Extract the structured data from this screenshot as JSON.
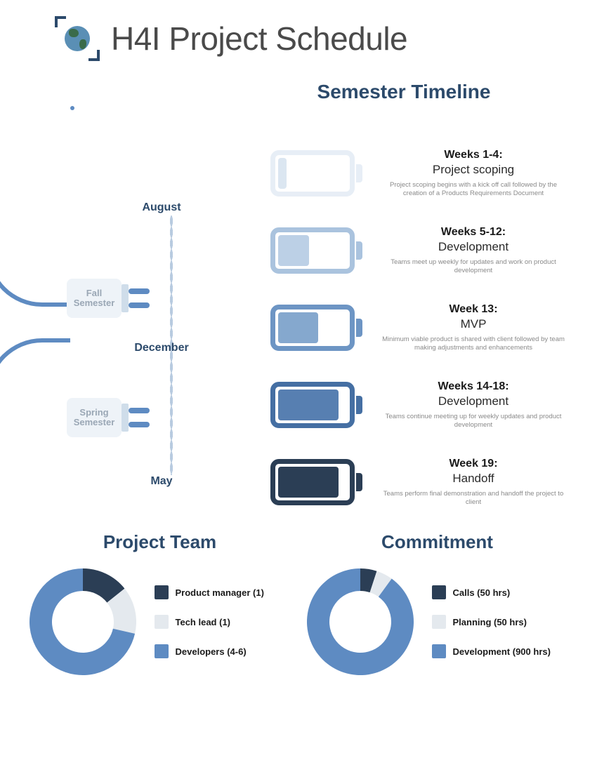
{
  "header": {
    "title": "H4I Project Schedule"
  },
  "timeline": {
    "subtitle": "Semester Timeline",
    "months": [
      "August",
      "December",
      "May"
    ],
    "plugs": {
      "fall_label": "Fall\nSemester",
      "spring_label": "Spring\nSemester"
    },
    "colors": {
      "accent_blue": "#5e8bc2",
      "dark_navy": "#2c4a6b",
      "pale": "#eef3f8",
      "midpale": "#cfddea"
    },
    "stages": [
      {
        "weeks": "Weeks 1-4:",
        "phase": "Project scoping",
        "desc": "Project scoping begins with a kick off call followed by the creation of a Products Requirements Document",
        "shell_color": "#e7eef6",
        "cap_color": "#e7eef6",
        "fill_color": "#dbe6f1",
        "fill_pct": 12
      },
      {
        "weeks": "Weeks 5-12:",
        "phase": "Development",
        "desc": "Teams meet up weekly for updates and work on product development",
        "shell_color": "#aac3de",
        "cap_color": "#aac3de",
        "fill_color": "#bcd0e6",
        "fill_pct": 45
      },
      {
        "weeks": "Week 13:",
        "phase": "MVP",
        "desc": "Minimum viable product is shared with client followed by team making adjustments and enhancements",
        "shell_color": "#6d95c4",
        "cap_color": "#6d95c4",
        "fill_color": "#85a8ce",
        "fill_pct": 58
      },
      {
        "weeks": "Weeks 14-18:",
        "phase": "Development",
        "desc": "Teams continue meeting up for weekly updates and product development",
        "shell_color": "#456fa3",
        "cap_color": "#456fa3",
        "fill_color": "#577fb1",
        "fill_pct": 88
      },
      {
        "weeks": "Week 19:",
        "phase": "Handoff",
        "desc": "Teams perform final demonstration and handoff the project to client",
        "shell_color": "#2b3e55",
        "cap_color": "#2b3e55",
        "fill_color": "#2b3e55",
        "fill_pct": 88
      }
    ]
  },
  "charts": {
    "team": {
      "title": "Project Team",
      "donut_thickness": 32,
      "bg": "#ffffff",
      "segments": [
        {
          "label": "Product manager (1)",
          "value": 1,
          "color": "#2b3e55"
        },
        {
          "label": "Tech lead (1)",
          "value": 1,
          "color": "#e4e9ee"
        },
        {
          "label": "Developers (4-6)",
          "value": 5,
          "color": "#5e8bc2"
        }
      ]
    },
    "commitment": {
      "title": "Commitment",
      "donut_thickness": 32,
      "bg": "#ffffff",
      "segments": [
        {
          "label": "Calls (50 hrs)",
          "value": 50,
          "color": "#2b3e55"
        },
        {
          "label": "Planning (50 hrs)",
          "value": 50,
          "color": "#e4e9ee"
        },
        {
          "label": "Development (900 hrs)",
          "value": 900,
          "color": "#5e8bc2"
        }
      ]
    }
  }
}
